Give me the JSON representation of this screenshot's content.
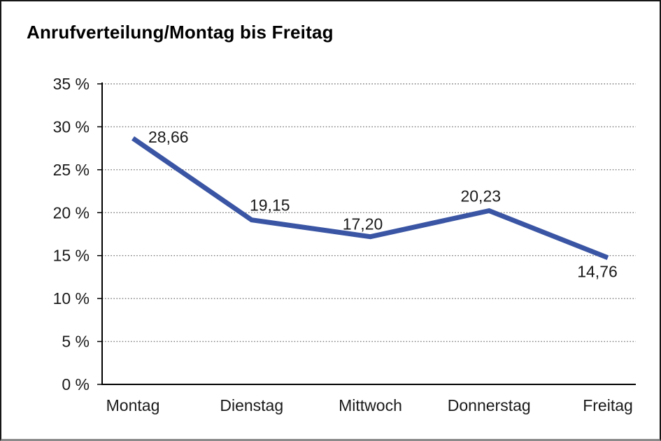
{
  "chart": {
    "title": "Anrufverteilung/Montag bis Freitag"
  },
  "chart_data": {
    "type": "line",
    "title": "Anrufverteilung/Montag bis Freitag",
    "categories": [
      "Montag",
      "Dienstag",
      "Mittwoch",
      "Donnerstag",
      "Freitag"
    ],
    "values": [
      28.66,
      19.15,
      17.2,
      20.23,
      14.76
    ],
    "value_labels": [
      "28,66",
      "19,15",
      "17,20",
      "20,23",
      "14,76"
    ],
    "y_ticks": [
      0,
      5,
      10,
      15,
      20,
      25,
      30,
      35
    ],
    "y_tick_labels": [
      "0 %",
      "5 %",
      "10 %",
      "15 %",
      "20 %",
      "25 %",
      "30 %",
      "35 %"
    ],
    "ylim": [
      0,
      35
    ],
    "xlabel": "",
    "ylabel": "",
    "grid": "horizontal-dotted",
    "legend": "none"
  },
  "colors": {
    "line": "#3A55A4",
    "axis": "#000000",
    "grid": "#777777",
    "text": "#1a1a1a",
    "background": "#ffffff"
  }
}
